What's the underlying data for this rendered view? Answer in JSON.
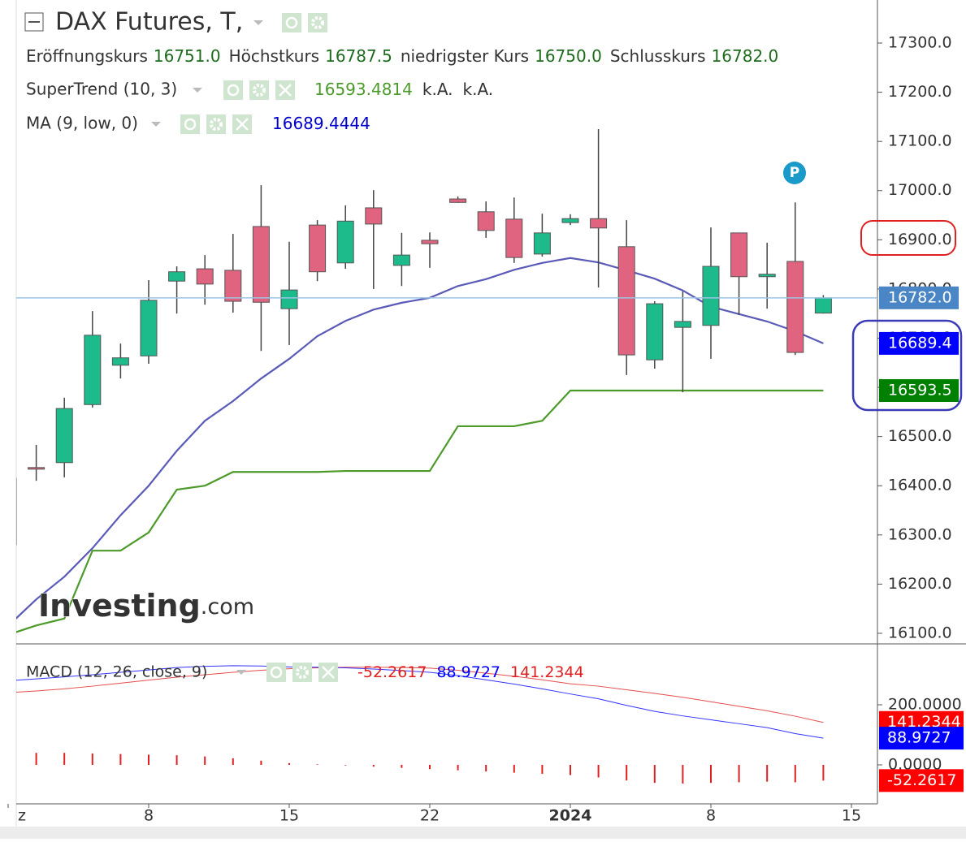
{
  "chart_data": [
    {
      "type": "candlestick",
      "title": "DAX Futures, T,",
      "ohlc_legend": [
        {
          "name": "Eröffnungskurs",
          "value_label": "16751.0"
        },
        {
          "name": "Höchstkurs",
          "value_label": "16787.5"
        },
        {
          "name": "niedrigster Kurs",
          "value_label": "16750.0"
        },
        {
          "name": "Schlusskurs",
          "value_label": "16782.0"
        }
      ],
      "x": [
        0,
        1,
        2,
        3,
        4,
        5,
        6,
        7,
        8,
        9,
        10,
        11,
        12,
        13,
        14,
        15,
        16,
        17,
        18,
        19,
        20,
        21,
        22,
        23,
        24,
        25,
        26,
        27,
        28,
        29
      ],
      "xlim": [
        -0.289,
        30.954
      ],
      "xticks": [
        {
          "value": 0,
          "label": "z"
        },
        {
          "value": 5,
          "label": "8"
        },
        {
          "value": 10,
          "label": "15"
        },
        {
          "value": 15,
          "label": "22"
        },
        {
          "value": 20,
          "label": "2024"
        },
        {
          "value": 25,
          "label": "8"
        },
        {
          "value": 30,
          "label": "15"
        }
      ],
      "open": [
        16280,
        16437,
        16447,
        16565,
        16645,
        16664,
        16816,
        16841,
        16838,
        16927,
        16760,
        16930,
        16853,
        16965,
        16848,
        16899,
        16983,
        16957,
        16942,
        16871,
        16935,
        16943,
        16886,
        16656,
        16722,
        16726,
        16914,
        16825,
        16856,
        16751
      ],
      "high": [
        16415,
        16483,
        16579,
        16755,
        16689,
        16818,
        16846,
        16869,
        16912,
        17011,
        16896,
        16940,
        16970,
        17001,
        16914,
        16915,
        16988,
        16978,
        16986,
        16953,
        16952,
        17125,
        16940,
        16775,
        16795,
        16925,
        16914,
        16894,
        16976,
        16787.5
      ],
      "low": [
        16280,
        16410,
        16417,
        16559,
        16618,
        16648,
        16750,
        16768,
        16752,
        16674,
        16686,
        16816,
        16841,
        16800,
        16806,
        16843,
        16975,
        16904,
        16853,
        16866,
        16930,
        16803,
        16625,
        16638,
        16590,
        16658,
        16747,
        16760,
        16666,
        16750
      ],
      "close": [
        16415,
        16435,
        16557,
        16706,
        16660,
        16777,
        16835,
        16810,
        16775,
        16773,
        16798,
        16835,
        16938,
        16932,
        16869,
        16892,
        16976,
        16919,
        16864,
        16914,
        16943,
        16924,
        16666,
        16770,
        16734,
        16846,
        16825,
        16830,
        16671,
        16782
      ],
      "up_color": "#1dbb8b",
      "down_color": "#e0647f",
      "series": [
        {
          "name": "SuperTrend (10, 3)",
          "color": "#4c9a2a",
          "na_labels": [
            "k.A.",
            "k.A."
          ],
          "values": [
            16097,
            16116,
            16130,
            16268,
            16268,
            16305,
            16392,
            16400,
            16428,
            16428,
            16428,
            16428,
            16430,
            16430,
            16430,
            16430,
            16521,
            16521,
            16521,
            16532,
            16593.5,
            16593.5,
            16593.5,
            16593.5,
            16593.5,
            16593.5,
            16593.5,
            16593.5,
            16593.5,
            16593.4814
          ]
        },
        {
          "name": "MA (9, low, 0)",
          "color": "#5a5ab8",
          "value_color": "#0000cc",
          "values": [
            16115,
            16169,
            16215,
            16273,
            16340,
            16400,
            16471,
            16532,
            16572,
            16618,
            16658,
            16704,
            16735,
            16758,
            16772,
            16782,
            16806,
            16820,
            16839,
            16853,
            16863,
            16854,
            16838,
            16821,
            16797,
            16764,
            16749,
            16734,
            16714,
            16689.4444
          ]
        }
      ],
      "ylim": [
        16078.5,
        17387.5
      ],
      "yticks": [
        {
          "value": 16100,
          "label": "16100.0"
        },
        {
          "value": 16200,
          "label": "16200.0"
        },
        {
          "value": 16300,
          "label": "16300.0"
        },
        {
          "value": 16400,
          "label": "16400.0"
        },
        {
          "value": 16500,
          "label": "16500.0"
        },
        {
          "value": 16600,
          "label": "16600.0"
        },
        {
          "value": 16700,
          "label": "16700.0"
        },
        {
          "value": 16800,
          "label": "16800.0"
        },
        {
          "value": 16900,
          "label": "16900.0"
        },
        {
          "value": 17000,
          "label": "17000.0"
        },
        {
          "value": 17100,
          "label": "17100.0"
        },
        {
          "value": 17200,
          "label": "17200.0"
        },
        {
          "value": 17300,
          "label": "17300.0"
        }
      ],
      "price_labels": [
        {
          "value": 16782,
          "label": "16782.0",
          "color": "#4a86c5"
        },
        {
          "value": 16689.4,
          "label": "16689.4",
          "color": "#0000ff"
        },
        {
          "value": 16593.5,
          "label": "16593.5",
          "color": "#008000"
        }
      ],
      "annotations": [
        {
          "text": "P"
        }
      ],
      "watermark": [
        "Investing",
        ".com"
      ]
    },
    {
      "type": "macd",
      "title": "MACD (12, 26, close, 9)",
      "series": [
        {
          "color": "#e02020",
          "values": [
            40,
            40,
            40,
            38,
            36,
            34,
            32,
            28,
            22,
            14,
            6,
            2,
            -2,
            -6,
            -10,
            -14,
            -18,
            -22,
            -26,
            -30,
            -34,
            -42,
            -52,
            -60,
            -62,
            -60,
            -58,
            -56,
            -58,
            -52.2617
          ]
        },
        {
          "color": "#0000ff",
          "values": [
            280,
            286,
            293,
            300,
            308,
            316,
            324,
            328,
            330,
            329,
            326,
            325,
            323,
            319,
            314,
            308,
            297,
            283,
            269,
            253,
            236,
            220,
            198,
            178,
            163,
            150,
            137,
            124,
            104,
            88.9727
          ]
        },
        {
          "color": "#e02020",
          "values": [
            240,
            246,
            253,
            262,
            272,
            282,
            292,
            300,
            308,
            315,
            320,
            323,
            325,
            325,
            324,
            322,
            315,
            305,
            295,
            283,
            270,
            262,
            250,
            238,
            225,
            210,
            195,
            180,
            162,
            141.2344
          ]
        }
      ],
      "ylim": [
        -116.2,
        397.3
      ],
      "yticks": [
        {
          "value": 0,
          "label": "0.0000"
        },
        {
          "value": 200,
          "label": "200.0000"
        }
      ]
    }
  ]
}
